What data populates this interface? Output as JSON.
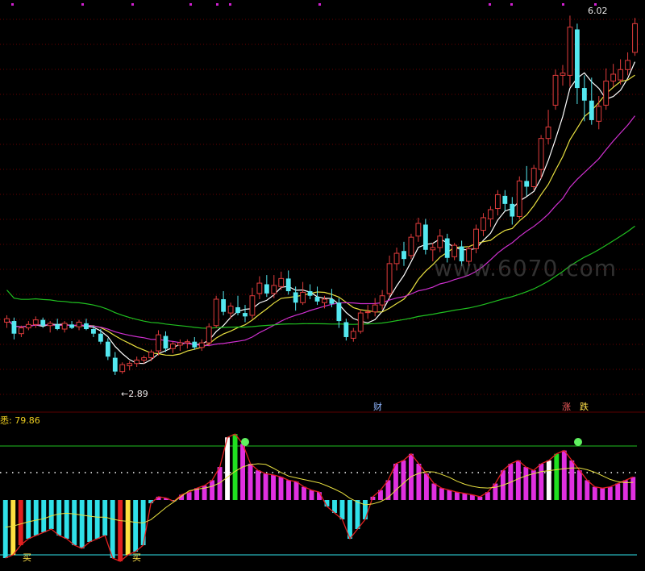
{
  "colors": {
    "background": "#000000",
    "up": "#e03c3c",
    "down": "#54e8f0",
    "ma5": "#ffffff",
    "ma10": "#e8e040",
    "ma20": "#d030d0",
    "ma60": "#20c020",
    "grid": "#6a0000",
    "osc_pos": "#e030e0",
    "osc_neg": "#30e0e8",
    "osc_signal": "#e8e040",
    "osc_curve": "#e02020",
    "osc_upper": "#20c020",
    "osc_lower": "#30e0e8",
    "buy_bar": "#ffe040",
    "buy_bar2": "#e02020",
    "peak_bar": "#ffffff",
    "peak_bar2": "#20e020"
  },
  "main_panel": {
    "max_label": "6.02",
    "min_label": "←2.89",
    "watermark": "www.6070.com",
    "markers": {
      "cai": "财",
      "zhang": "涨",
      "die": "跌"
    }
  },
  "indicator_panel": {
    "name_label": "悉: 79.86",
    "buy_labels": [
      "买",
      "买"
    ]
  },
  "chart_data": [
    {
      "type": "candlestick",
      "title": "",
      "ylim": [
        2.7,
        6.1
      ],
      "moving_averages": [
        "ma5",
        "ma10",
        "ma20",
        "ma60"
      ],
      "candles": [
        [
          3.35,
          3.41,
          3.3,
          3.38
        ],
        [
          3.36,
          3.39,
          3.2,
          3.25
        ],
        [
          3.25,
          3.32,
          3.22,
          3.3
        ],
        [
          3.3,
          3.36,
          3.28,
          3.33
        ],
        [
          3.33,
          3.4,
          3.3,
          3.37
        ],
        [
          3.37,
          3.39,
          3.3,
          3.32
        ],
        [
          3.32,
          3.36,
          3.26,
          3.34
        ],
        [
          3.33,
          3.38,
          3.28,
          3.29
        ],
        [
          3.29,
          3.36,
          3.26,
          3.34
        ],
        [
          3.33,
          3.36,
          3.29,
          3.3
        ],
        [
          3.31,
          3.37,
          3.28,
          3.35
        ],
        [
          3.34,
          3.38,
          3.28,
          3.29
        ],
        [
          3.29,
          3.32,
          3.22,
          3.25
        ],
        [
          3.25,
          3.29,
          3.16,
          3.18
        ],
        [
          3.18,
          3.21,
          3.02,
          3.05
        ],
        [
          3.04,
          3.09,
          2.89,
          2.92
        ],
        [
          2.92,
          3.0,
          2.9,
          2.98
        ],
        [
          2.97,
          3.01,
          2.93,
          2.99
        ],
        [
          2.99,
          3.05,
          2.96,
          3.02
        ],
        [
          3.02,
          3.06,
          2.99,
          3.04
        ],
        [
          3.04,
          3.11,
          3.01,
          3.09
        ],
        [
          3.1,
          3.28,
          3.06,
          3.24
        ],
        [
          3.23,
          3.27,
          3.09,
          3.12
        ],
        [
          3.12,
          3.18,
          3.08,
          3.16
        ],
        [
          3.15,
          3.2,
          3.1,
          3.17
        ],
        [
          3.17,
          3.2,
          3.12,
          3.18
        ],
        [
          3.18,
          3.22,
          3.11,
          3.13
        ],
        [
          3.13,
          3.2,
          3.1,
          3.17
        ],
        [
          3.17,
          3.34,
          3.14,
          3.31
        ],
        [
          3.32,
          3.58,
          3.3,
          3.55
        ],
        [
          3.55,
          3.62,
          3.41,
          3.44
        ],
        [
          3.43,
          3.52,
          3.38,
          3.49
        ],
        [
          3.48,
          3.58,
          3.41,
          3.43
        ],
        [
          3.43,
          3.5,
          3.35,
          3.4
        ],
        [
          3.41,
          3.65,
          3.38,
          3.58
        ],
        [
          3.6,
          3.75,
          3.55,
          3.69
        ],
        [
          3.68,
          3.76,
          3.57,
          3.6
        ],
        [
          3.6,
          3.76,
          3.56,
          3.67
        ],
        [
          3.66,
          3.79,
          3.63,
          3.73
        ],
        [
          3.73,
          3.8,
          3.59,
          3.62
        ],
        [
          3.61,
          3.66,
          3.45,
          3.52
        ],
        [
          3.52,
          3.7,
          3.5,
          3.61
        ],
        [
          3.62,
          3.68,
          3.55,
          3.58
        ],
        [
          3.57,
          3.66,
          3.5,
          3.53
        ],
        [
          3.52,
          3.58,
          3.47,
          3.55
        ],
        [
          3.55,
          3.64,
          3.48,
          3.51
        ],
        [
          3.52,
          3.56,
          3.3,
          3.36
        ],
        [
          3.35,
          3.38,
          3.19,
          3.22
        ],
        [
          3.21,
          3.3,
          3.18,
          3.27
        ],
        [
          3.27,
          3.46,
          3.25,
          3.43
        ],
        [
          3.44,
          3.5,
          3.38,
          3.44
        ],
        [
          3.44,
          3.56,
          3.4,
          3.5
        ],
        [
          3.5,
          3.63,
          3.46,
          3.58
        ],
        [
          3.6,
          3.93,
          3.56,
          3.86
        ],
        [
          3.86,
          4.0,
          3.8,
          3.95
        ],
        [
          3.97,
          4.05,
          3.84,
          3.9
        ],
        [
          3.93,
          4.12,
          3.9,
          4.09
        ],
        [
          4.1,
          4.26,
          4.05,
          4.21
        ],
        [
          4.2,
          4.25,
          3.94,
          3.98
        ],
        [
          3.98,
          4.04,
          3.88,
          4.0
        ],
        [
          4.0,
          4.16,
          3.96,
          4.1
        ],
        [
          4.08,
          4.12,
          3.87,
          3.91
        ],
        [
          3.92,
          4.04,
          3.89,
          4.02
        ],
        [
          4.01,
          4.06,
          3.84,
          3.88
        ],
        [
          3.88,
          4.01,
          3.84,
          3.99
        ],
        [
          3.99,
          4.2,
          3.95,
          4.16
        ],
        [
          4.15,
          4.3,
          4.1,
          4.26
        ],
        [
          4.25,
          4.36,
          4.18,
          4.33
        ],
        [
          4.34,
          4.5,
          4.28,
          4.46
        ],
        [
          4.45,
          4.5,
          4.32,
          4.38
        ],
        [
          4.38,
          4.44,
          4.2,
          4.27
        ],
        [
          4.27,
          4.62,
          4.25,
          4.58
        ],
        [
          4.58,
          4.71,
          4.45,
          4.53
        ],
        [
          4.53,
          4.72,
          4.5,
          4.69
        ],
        [
          4.68,
          4.98,
          4.6,
          4.95
        ],
        [
          4.95,
          5.2,
          4.9,
          5.05
        ],
        [
          5.24,
          5.55,
          5.2,
          5.5
        ],
        [
          5.5,
          5.59,
          5.41,
          5.52
        ],
        [
          5.5,
          6.02,
          5.4,
          5.92
        ],
        [
          5.9,
          5.95,
          5.25,
          5.39
        ],
        [
          5.39,
          5.5,
          5.1,
          5.28
        ],
        [
          5.28,
          5.48,
          5.07,
          5.11
        ],
        [
          5.1,
          5.32,
          5.03,
          5.23
        ],
        [
          5.24,
          5.56,
          5.2,
          5.45
        ],
        [
          5.45,
          5.6,
          5.4,
          5.51
        ],
        [
          5.46,
          5.64,
          5.42,
          5.55
        ],
        [
          5.55,
          5.7,
          5.5,
          5.63
        ],
        [
          5.7,
          6.0,
          5.67,
          5.95
        ]
      ]
    },
    {
      "type": "bar",
      "title": "",
      "series": [
        {
          "values": [
            -0.9,
            -0.85,
            -0.7,
            -0.6,
            -0.55,
            -0.5,
            -0.45,
            -0.55,
            -0.6,
            -0.7,
            -0.75,
            -0.65,
            -0.6,
            -0.55,
            -0.9,
            -0.95,
            -0.85,
            -0.8,
            -0.7,
            -0.05,
            0.05,
            0.03,
            -0.02,
            0.08,
            0.12,
            0.18,
            0.22,
            0.3,
            0.5,
            0.95,
            1.0,
            0.85,
            0.55,
            0.45,
            0.4,
            0.38,
            0.35,
            0.3,
            0.28,
            0.2,
            0.15,
            0.12,
            -0.1,
            -0.2,
            -0.3,
            -0.6,
            -0.45,
            -0.3,
            0.05,
            0.15,
            0.3,
            0.55,
            0.6,
            0.7,
            0.55,
            0.4,
            0.25,
            0.18,
            0.15,
            0.12,
            0.1,
            0.08,
            0.05,
            0.12,
            0.25,
            0.45,
            0.55,
            0.6,
            0.5,
            0.45,
            0.55,
            0.6,
            0.7,
            0.75,
            0.6,
            0.45,
            0.3,
            0.2,
            0.18,
            0.2,
            0.25,
            0.3,
            0.35
          ]
        }
      ],
      "ylim": [
        -1.0,
        1.1
      ]
    }
  ]
}
